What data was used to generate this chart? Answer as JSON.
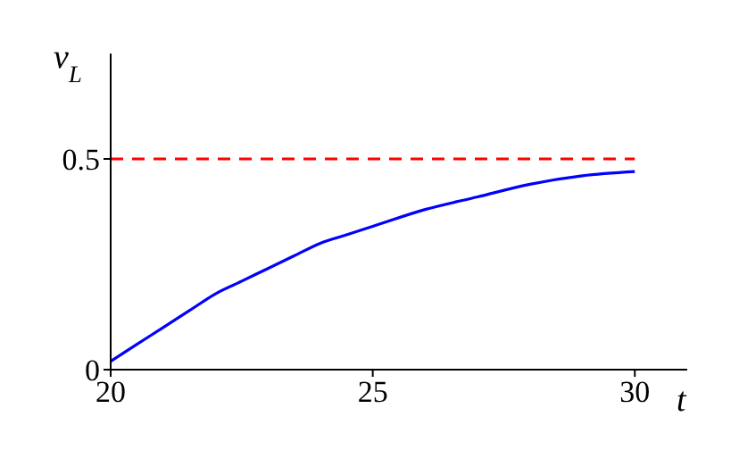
{
  "chart_data": {
    "type": "line",
    "xlabel": "t",
    "ylabel": "v$_{L}$",
    "xlim": [
      20,
      31
    ],
    "ylim": [
      0,
      0.75
    ],
    "xticks": [
      20,
      25,
      30
    ],
    "yticks": [
      0,
      0.5
    ],
    "series": [
      {
        "color": "#0000ff",
        "line_style": "solid",
        "x": [
          20,
          20.5,
          21,
          21.5,
          22,
          22.5,
          23,
          23.5,
          24,
          24.5,
          25,
          26,
          27,
          28,
          29,
          30
        ],
        "values": [
          0.02,
          0.06,
          0.1,
          0.14,
          0.18,
          0.21,
          0.24,
          0.27,
          0.3,
          0.32,
          0.34,
          0.38,
          0.41,
          0.44,
          0.46,
          0.47
        ]
      },
      {
        "color": "#ff0000",
        "line_style": "dashed",
        "x": [
          20,
          30
        ],
        "values": [
          0.5,
          0.5
        ]
      }
    ]
  }
}
